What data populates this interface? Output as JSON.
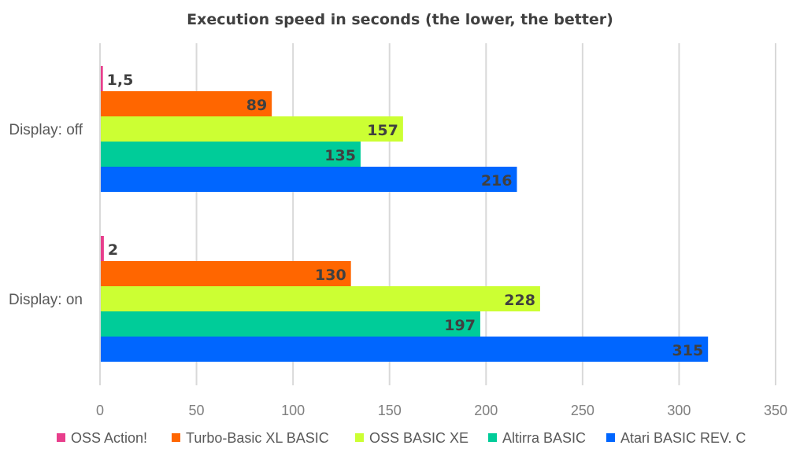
{
  "chart_data": {
    "type": "bar",
    "orientation": "horizontal",
    "title": "Execution speed in seconds (the lower, the better)",
    "xlabel": "",
    "ylabel": "",
    "xlim": [
      0,
      350
    ],
    "ticks": [
      0,
      50,
      100,
      150,
      200,
      250,
      300,
      350
    ],
    "tick_labels": [
      "0",
      "50",
      "100",
      "150",
      "200",
      "250",
      "300",
      "350"
    ],
    "grid": true,
    "legend_position": "bottom",
    "categories": [
      "Display: off",
      "Display: on"
    ],
    "series": [
      {
        "name": "OSS Action!",
        "color": "#e83e8c",
        "values": [
          1.5,
          2
        ],
        "labels": [
          "1,5",
          "2"
        ]
      },
      {
        "name": "Turbo-Basic XL BASIC",
        "color": "#ff6600",
        "values": [
          89,
          130
        ],
        "labels": [
          "89",
          "130"
        ]
      },
      {
        "name": "OSS BASIC XE",
        "color": "#ccff33",
        "values": [
          157,
          228
        ],
        "labels": [
          "157",
          "228"
        ]
      },
      {
        "name": "Altirra BASIC",
        "color": "#00cc99",
        "values": [
          135,
          197
        ],
        "labels": [
          "135",
          "197"
        ]
      },
      {
        "name": "Atari BASIC REV. C",
        "color": "#0066ff",
        "values": [
          216,
          315
        ],
        "labels": [
          "216",
          "315"
        ]
      }
    ]
  }
}
